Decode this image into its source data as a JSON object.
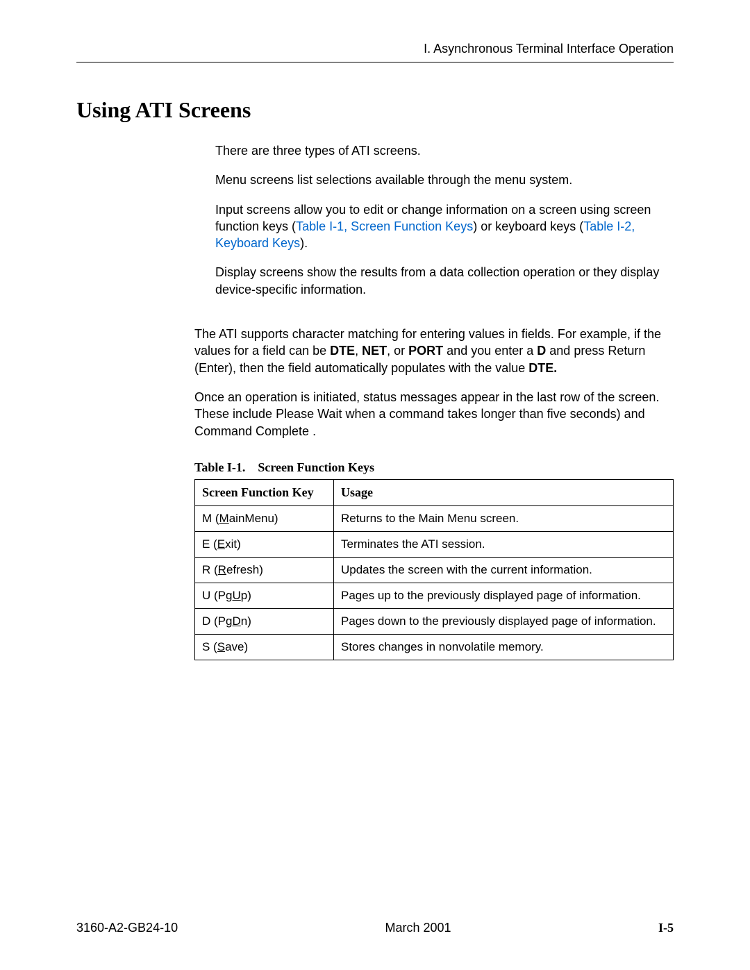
{
  "header": {
    "running_title": "I. Asynchronous Terminal Interface Operation"
  },
  "heading": "Using ATI Screens",
  "intro": {
    "p1": "There are three types of ATI screens.",
    "p2": "Menu screens list selections available through the menu system.",
    "p3_prefix": "Input screens allow you to edit or change information on a screen using screen function keys (",
    "p3_link1": "Table I-1, Screen Function Keys",
    "p3_mid": ") or keyboard keys (",
    "p3_link2": "Table I-2, Keyboard Keys",
    "p3_suffix": ").",
    "p4": "Display screens show the results from a data collection operation or they display device-specific information."
  },
  "body": {
    "p5_a": "The ATI supports character matching for entering values in fields. For example, if the values for a field can be ",
    "p5_b1": "DTE",
    "p5_b2": "NET",
    "p5_b3": "PORT",
    "p5_c": " and you enter a ",
    "p5_d": "D",
    "p5_e": " and press Return (Enter), then the field automatically populates with the value ",
    "p5_f": "DTE.",
    "p6": "Once an operation is initiated, status messages appear in the last row of the screen. These include Please Wait     when a command takes longer than five seconds) and Command Complete ."
  },
  "table": {
    "caption_num": "Table I-1.",
    "caption_title": "Screen Function Keys",
    "columns": [
      "Screen Function Key",
      "Usage"
    ],
    "col_widths": [
      "200px",
      "auto"
    ],
    "header_font": "Times New Roman",
    "cell_font": "Arial",
    "border_color": "#000000",
    "font_size_header": 18,
    "font_size_cell": 17,
    "rows": [
      {
        "key_pre": "M (",
        "key_u": "M",
        "key_post": "ainMenu)",
        "usage": "Returns to the Main Menu screen."
      },
      {
        "key_pre": "E (",
        "key_u": "E",
        "key_post": "xit)",
        "usage": "Terminates the ATI session."
      },
      {
        "key_pre": "R (",
        "key_u": "R",
        "key_post": "efresh)",
        "usage": "Updates the screen with the current information."
      },
      {
        "key_pre": "U (Pg",
        "key_u": "U",
        "key_post": "p)",
        "usage": "Pages up to the previously displayed page of information."
      },
      {
        "key_pre": "D (Pg",
        "key_u": "D",
        "key_post": "n)",
        "usage": "Pages down to the previously displayed page of information."
      },
      {
        "key_pre": "S (",
        "key_u": "S",
        "key_post": "ave)",
        "usage": "Stores changes in nonvolatile memory."
      }
    ]
  },
  "footer": {
    "doc_id": "3160-A2-GB24-10",
    "date": "March 2001",
    "page": "I-5"
  },
  "colors": {
    "text": "#000000",
    "link": "#0066cc",
    "background": "#ffffff",
    "rule": "#000000"
  }
}
